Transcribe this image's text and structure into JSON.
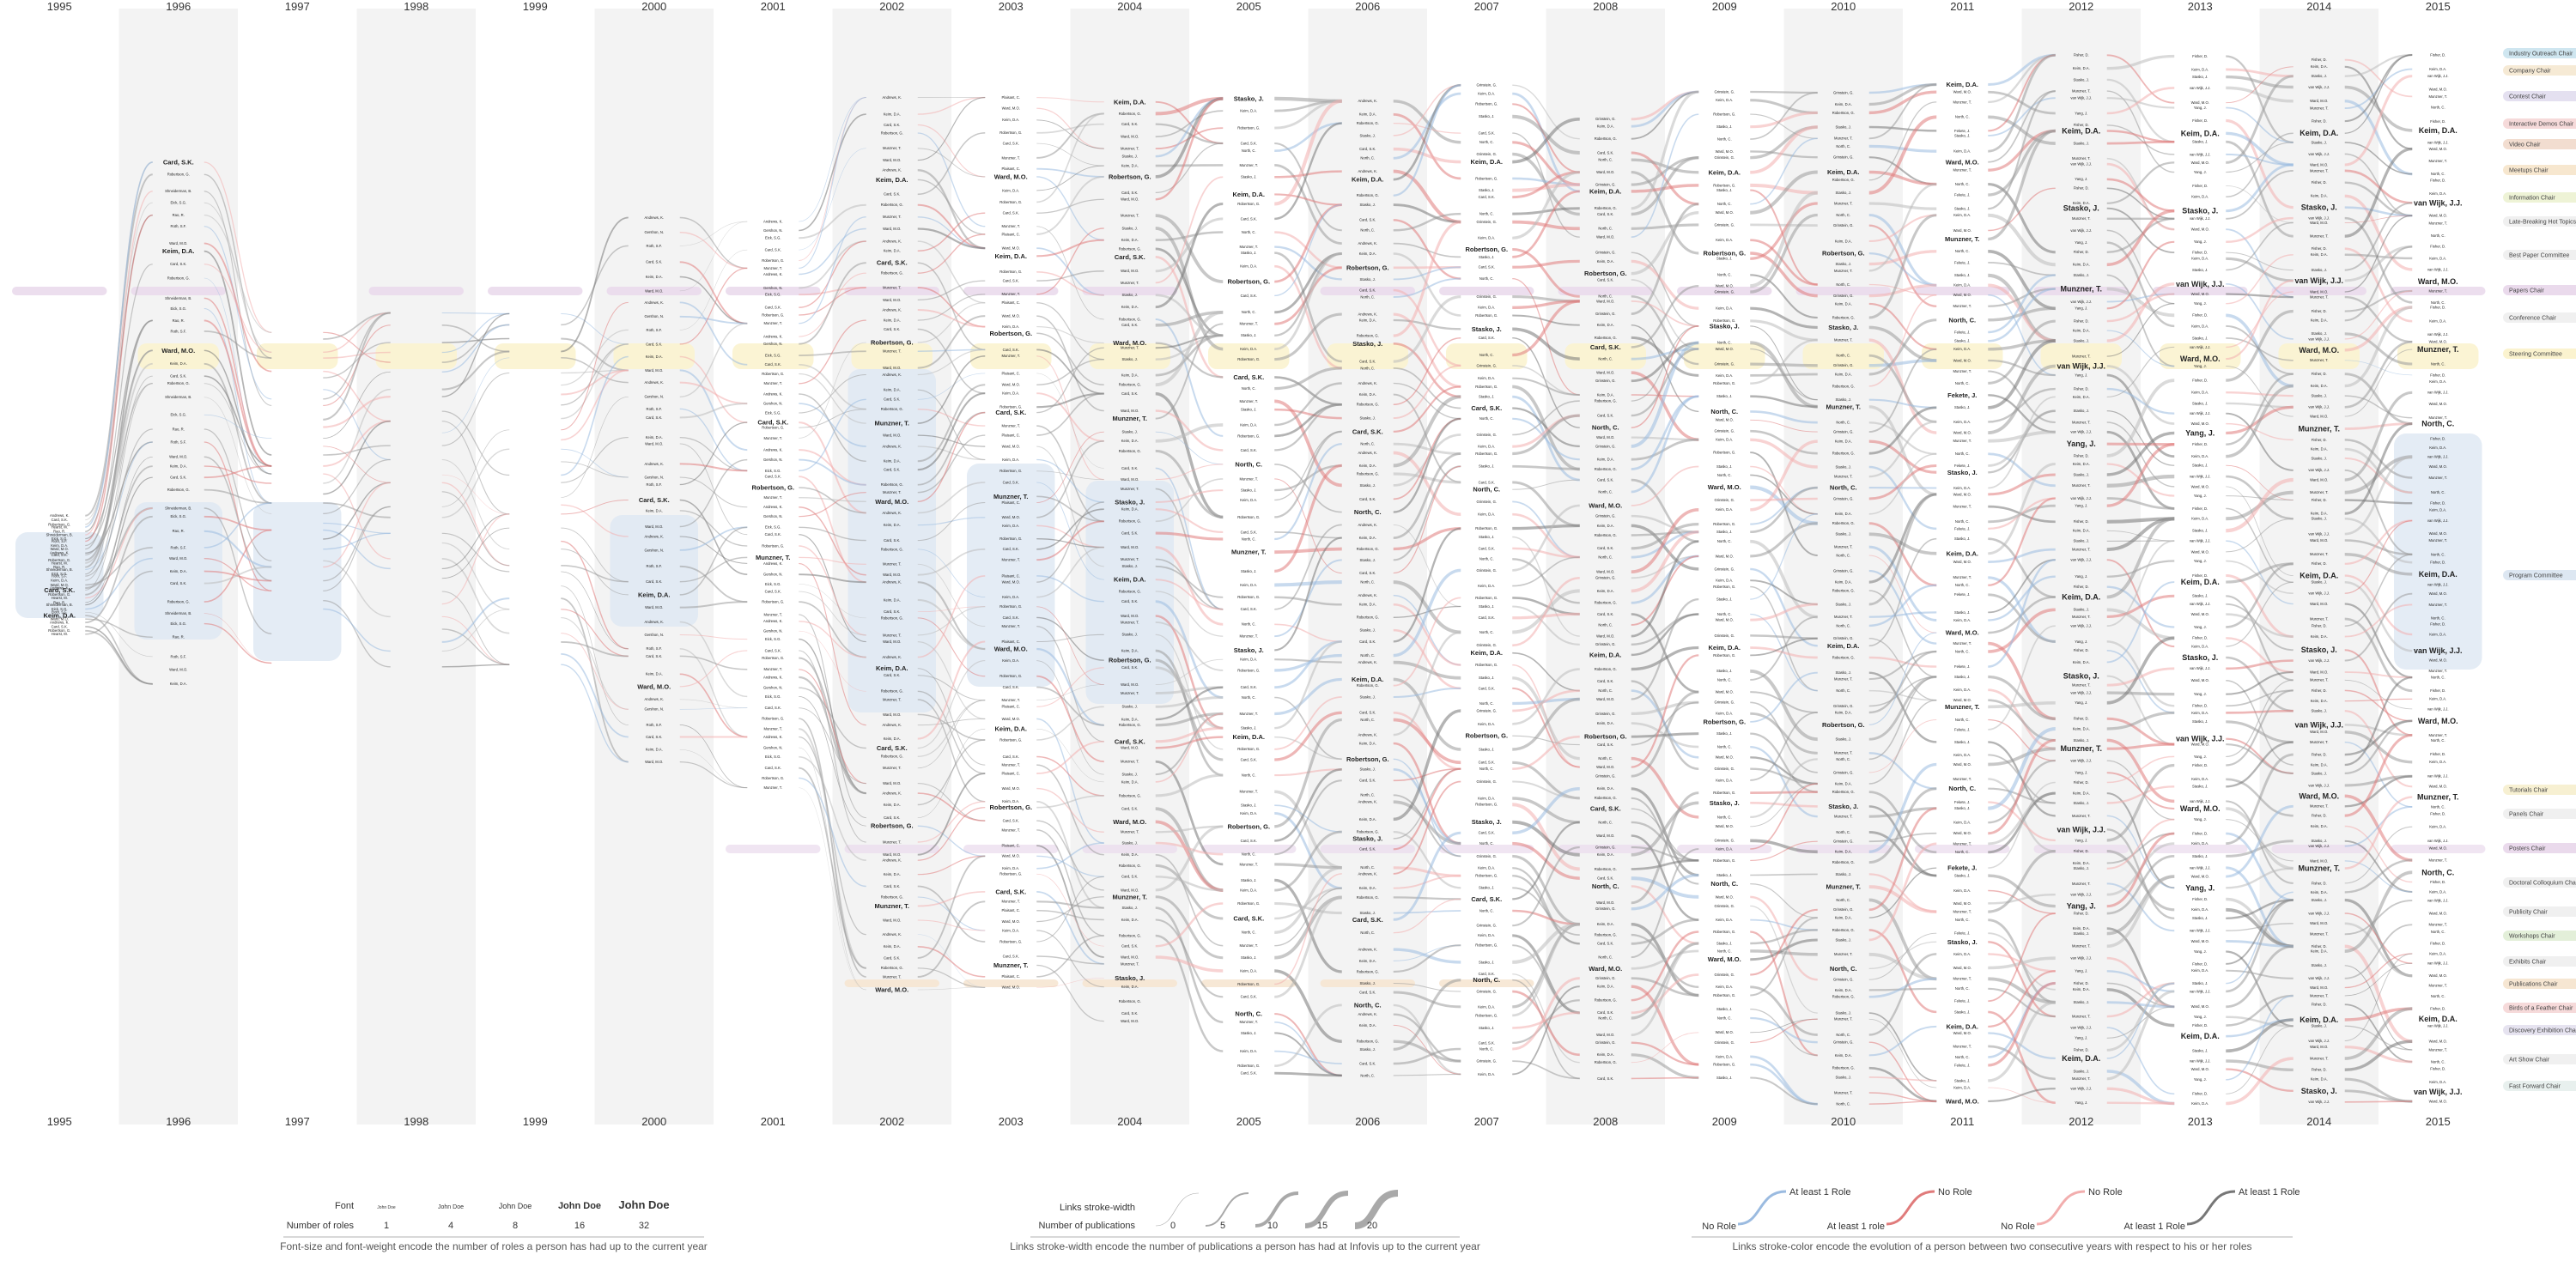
{
  "chart_data": {
    "type": "timeline-storyline",
    "years": [
      "1995",
      "1996",
      "1997",
      "1998",
      "1999",
      "2000",
      "2001",
      "2002",
      "2003",
      "2004",
      "2005",
      "2006",
      "2007",
      "2008",
      "2009",
      "2010",
      "2011",
      "2012",
      "2013",
      "2014",
      "2015"
    ],
    "role_categories": [
      {
        "name": "Industry Outreach Chair",
        "color": "#cfe6f0"
      },
      {
        "name": "Company Chair",
        "color": "#f6ead5"
      },
      {
        "name": "Contest Chair",
        "color": "#e4e0f0"
      },
      {
        "name": "Interactive Demos Chair",
        "color": "#f6dada"
      },
      {
        "name": "Video Chair",
        "color": "#f2ddd0"
      },
      {
        "name": "Meetups Chair",
        "color": "#f7e7cf"
      },
      {
        "name": "Information Chair",
        "color": "#eef3d6"
      },
      {
        "name": "Late-Breaking Hot Topics Chair",
        "color": "#f0f0f0"
      },
      {
        "name": "Best Paper Committee",
        "color": "#f0f0f0"
      },
      {
        "name": "Papers Chair",
        "color": "#eadaec"
      },
      {
        "name": "Conference Chair",
        "color": "#f0f0f0"
      },
      {
        "name": "Steering Committee",
        "color": "#fbf3cf"
      },
      {
        "name": "Program Committee",
        "color": "#dde7f2"
      },
      {
        "name": "Tutorials Chair",
        "color": "#f7f0d2"
      },
      {
        "name": "Panels Chair",
        "color": "#f0f0f0"
      },
      {
        "name": "Posters Chair",
        "color": "#eadaec"
      },
      {
        "name": "Doctoral Colloquium Chair",
        "color": "#f0f0f0"
      },
      {
        "name": "Publicity Chair",
        "color": "#f0f0f0"
      },
      {
        "name": "Workshops Chair",
        "color": "#e3efd9"
      },
      {
        "name": "Exhibits Chair",
        "color": "#f0f0f0"
      },
      {
        "name": "Publications Chair",
        "color": "#f6e6d2"
      },
      {
        "name": "Birds of a Feather Chair",
        "color": "#f6dada"
      },
      {
        "name": "Discovery Exhibition Chair",
        "color": "#e6e3f0"
      },
      {
        "name": "Art Show Chair",
        "color": "#f0f0f0"
      },
      {
        "name": "Fast Forward Chair",
        "color": "#e8f0ee"
      }
    ],
    "highlighted_people": [
      {
        "name": "Keim, D.A.",
        "years": [
          "2002",
          "2004",
          "2006",
          "2008",
          "2010",
          "2012",
          "2013",
          "2014",
          "2015"
        ]
      },
      {
        "name": "Robertson, G.",
        "years": [
          "2004",
          "2005",
          "2008",
          "2009",
          "2010"
        ]
      },
      {
        "name": "Stasko, J.",
        "years": [
          "2005",
          "2006",
          "2012",
          "2013",
          "2014"
        ]
      },
      {
        "name": "Ward, M.O.",
        "years": [
          "2004",
          "2011",
          "2013",
          "2014",
          "2015"
        ]
      },
      {
        "name": "van Wijk, J.J.",
        "years": [
          "2012",
          "2013",
          "2014",
          "2015"
        ]
      },
      {
        "name": "Card, S.K.",
        "years": [
          "2002",
          "2004",
          "2006",
          "2008"
        ]
      },
      {
        "name": "Munzner, T.",
        "years": [
          "2010",
          "2011",
          "2012",
          "2013",
          "2014",
          "2015"
        ]
      },
      {
        "name": "North, C.",
        "years": [
          "2005",
          "2008",
          "2011",
          "2012",
          "2014",
          "2015"
        ]
      },
      {
        "name": "Fekete, J.",
        "years": [
          "2011",
          "2013",
          "2014",
          "2015"
        ]
      },
      {
        "name": "Yang, J.",
        "years": [
          "2012",
          "2013",
          "2014"
        ]
      }
    ],
    "sample_names": {
      "1995": [
        "Andrews, K.",
        "Card, S.K.",
        "Robertson, G.",
        "Hearst, M.",
        "Rao, R.",
        "Shneiderman, B.",
        "Eick, S.G.",
        "Roth, S.F.",
        "Keim, D.A.",
        "Ward, M.O."
      ],
      "1996": [
        "Card, S.K.",
        "Robertson, G.",
        "Shneiderman, B.",
        "Eick, S.G.",
        "Rao, R.",
        "Roth, S.F.",
        "Ward, M.O.",
        "Keim, D.A."
      ],
      "2000": [
        "Andrews, K.",
        "Gershon, N.",
        "Roth, S.F.",
        "Card, S.K.",
        "Keim, D.A.",
        "Ward, M.O."
      ],
      "2001": [
        "Andrews, K.",
        "Gershon, N.",
        "Eick, S.G.",
        "Card, S.K.",
        "Robertson, G.",
        "Munzner, T."
      ],
      "2002": [
        "Andrews, K.",
        "Keim, D.A.",
        "Card, S.K.",
        "Robertson, G.",
        "Munzner, T.",
        "Ward, M.O."
      ],
      "2003": [
        "Plaisant, C.",
        "Ward, M.O.",
        "Keim, D.A.",
        "Robertson, G.",
        "Card, S.K.",
        "Munzner, T."
      ],
      "2004": [
        "Keim, D.A.",
        "Robertson, G.",
        "Card, S.K.",
        "Ward, M.O.",
        "Munzner, T.",
        "Stasko, J."
      ],
      "2005": [
        "Stasko, J.",
        "Keim, D.A.",
        "Robertson, G.",
        "Card, S.K.",
        "North, C.",
        "Munzner, T."
      ],
      "2006": [
        "Andrews, K.",
        "Keim, D.A.",
        "Robertson, G.",
        "Stasko, J.",
        "Card, S.K.",
        "North, C."
      ],
      "2007": [
        "Grinstein, G.",
        "Keim, D.A.",
        "Robertson, G.",
        "Stasko, J.",
        "Card, S.K.",
        "North, C."
      ],
      "2008": [
        "Grinstein, G.",
        "Keim, D.A.",
        "Robertson, G.",
        "Card, S.K.",
        "North, C.",
        "Ward, M.O."
      ],
      "2009": [
        "Grinstein, G.",
        "Keim, D.A.",
        "Robertson, G.",
        "Stasko, J.",
        "North, C.",
        "Ward, M.O."
      ],
      "2010": [
        "Grinstein, G.",
        "Keim, D.A.",
        "Robertson, G.",
        "Stasko, J.",
        "Munzner, T.",
        "North, C."
      ],
      "2011": [
        "Keim, D.A.",
        "Ward, M.O.",
        "Munzner, T.",
        "North, C.",
        "Fekete, J.",
        "Stasko, J."
      ],
      "2012": [
        "Fisher, D.",
        "Keim, D.A.",
        "Stasko, J.",
        "Munzner, T.",
        "van Wijk, J.J.",
        "Yang, J."
      ],
      "2013": [
        "Fisher, D.",
        "Keim, D.A.",
        "Stasko, J.",
        "van Wijk, J.J.",
        "Ward, M.O.",
        "Yang, J."
      ],
      "2014": [
        "Fisher, D.",
        "Keim, D.A.",
        "Stasko, J.",
        "van Wijk, J.J.",
        "Ward, M.O.",
        "Munzner, T."
      ],
      "2015": [
        "Fisher, D.",
        "Keim, D.A.",
        "van Wijk, J.J.",
        "Ward, M.O.",
        "Munzner, T.",
        "North, C."
      ]
    },
    "legend_font": {
      "row_label_1": "Font",
      "row_label_2": "Number of roles",
      "samples": [
        {
          "text": "John Doe",
          "roles": "1"
        },
        {
          "text": "John Doe",
          "roles": "4"
        },
        {
          "text": "John Doe",
          "roles": "8"
        },
        {
          "text": "John Doe",
          "roles": "16"
        },
        {
          "text": "John Doe",
          "roles": "32"
        }
      ],
      "caption": "Font-size and font-weight encode the number of roles a person has had up to the current year"
    },
    "legend_stroke": {
      "row_label_1": "Links stroke-width",
      "row_label_2": "Number of publications",
      "values": [
        "0",
        "5",
        "10",
        "15",
        "20"
      ],
      "caption": "Links stroke-width encode the number of publications a person has had at Infovis up to the current year"
    },
    "legend_color": {
      "items": [
        {
          "from": "No Role",
          "to": "At least 1 Role",
          "color": "#9bbbe0"
        },
        {
          "from": "At least 1 role",
          "to": "No Role",
          "color": "#e07b7b"
        },
        {
          "from": "No Role",
          "to": "No Role",
          "color": "#f2aeae"
        },
        {
          "from": "At least 1 Role",
          "to": "At least 1 Role",
          "color": "#777777"
        }
      ],
      "caption": "Links stroke-color encode the evolution of a person between two consecutive years with respect to his or her roles"
    }
  }
}
